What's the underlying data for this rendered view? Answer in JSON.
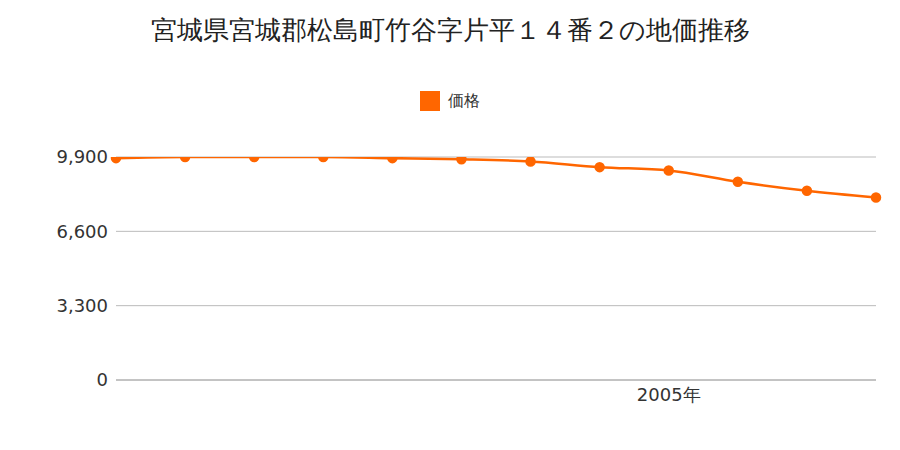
{
  "chart_data": {
    "type": "line",
    "title": "宮城県宮城郡松島町竹谷字片平１４番２の地価推移",
    "categories": [
      null,
      null,
      null,
      null,
      null,
      null,
      null,
      null,
      "2005年",
      null,
      null,
      null
    ],
    "series": [
      {
        "name": "価格",
        "color": "#ff6600",
        "values": [
          9850,
          9900,
          9900,
          9900,
          9850,
          9800,
          9700,
          9450,
          9300,
          8800,
          8400,
          8100
        ]
      }
    ],
    "ylim": [
      0,
      9900
    ],
    "yticks": [
      0,
      {
        "value": 3300,
        "label": "3,300"
      },
      {
        "value": 6600,
        "label": "6,600"
      },
      {
        "value": 9900,
        "label": "9,900"
      }
    ],
    "grid": true,
    "legend": "top",
    "marker": "circle"
  }
}
